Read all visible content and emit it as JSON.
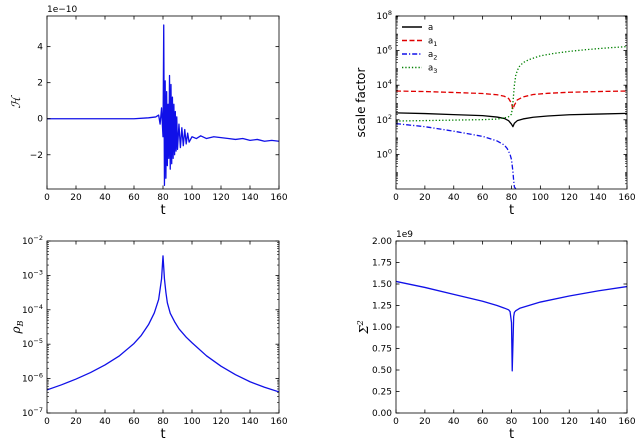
{
  "colors": {
    "blue": "#1010e8",
    "black": "#000000",
    "red": "#e00000",
    "green": "#008000"
  },
  "chart_data": [
    {
      "id": "hamiltonian",
      "type": "line",
      "xlabel": "t",
      "ylabel": "ℋ",
      "offset_text": "1e−10",
      "xlim": [
        0,
        160
      ],
      "ylim": [
        -3.9,
        5.7
      ],
      "xticks": [
        "0",
        "20",
        "40",
        "60",
        "80",
        "100",
        "120",
        "140",
        "160"
      ],
      "yticks": [
        "−2",
        "0",
        "2",
        "4"
      ],
      "series": [
        {
          "color": "#1010e8",
          "x": [
            0,
            20,
            40,
            60,
            70,
            75,
            77,
            78,
            79,
            80,
            80.5,
            81,
            81.5,
            82,
            82.5,
            83,
            83.5,
            84,
            84.5,
            85,
            85.5,
            86,
            86.5,
            87,
            87.5,
            88,
            88.5,
            89,
            89.5,
            90,
            91,
            92,
            93,
            94,
            95,
            96,
            97,
            98,
            100,
            103,
            106,
            110,
            115,
            120,
            125,
            130,
            135,
            140,
            145,
            150,
            155,
            160
          ],
          "y": [
            0,
            0,
            0,
            0,
            0.05,
            0.1,
            0.2,
            -0.3,
            0.6,
            -1.0,
            5.2,
            -3.7,
            2.1,
            -3.3,
            1.5,
            -2.6,
            0.8,
            -2.2,
            2.4,
            -2.8,
            1.9,
            -2.5,
            1.2,
            -2.2,
            0.8,
            -2.0,
            0.4,
            -1.8,
            0.1,
            -1.7,
            -0.3,
            -1.6,
            -0.5,
            -1.5,
            -0.6,
            -1.4,
            -0.8,
            -1.3,
            -1.0,
            -1.1,
            -0.95,
            -1.1,
            -1.0,
            -1.05,
            -1.1,
            -1.15,
            -1.1,
            -1.2,
            -1.15,
            -1.25,
            -1.2,
            -1.25
          ]
        }
      ]
    },
    {
      "id": "scale-factor",
      "type": "line",
      "xlabel": "t",
      "ylabel": "scale factor",
      "yscale": "log",
      "xlim": [
        0,
        160
      ],
      "ylim": [
        0.01,
        100000000
      ],
      "xticks": [
        "0",
        "20",
        "40",
        "60",
        "80",
        "100",
        "120",
        "140",
        "160"
      ],
      "yticks": [
        {
          "base": "10",
          "exp": "0"
        },
        {
          "base": "10",
          "exp": "2"
        },
        {
          "base": "10",
          "exp": "4"
        },
        {
          "base": "10",
          "exp": "6"
        },
        {
          "base": "10",
          "exp": "8"
        }
      ],
      "legend_position": "top-left",
      "series": [
        {
          "name": "a",
          "color": "#000000",
          "dash": "solid",
          "x": [
            0,
            20,
            40,
            60,
            70,
            75,
            78,
            80,
            81,
            82,
            84,
            88,
            95,
            105,
            120,
            140,
            160
          ],
          "y": [
            251,
            229,
            200,
            174,
            144,
            120,
            89,
            56,
            40,
            63,
            89,
            112,
            141,
            166,
            195,
            215,
            235
          ]
        },
        {
          "name": "a",
          "sub": "1",
          "color": "#e00000",
          "dash": "dashed",
          "x": [
            0,
            20,
            40,
            60,
            70,
            75,
            78,
            80,
            81,
            82,
            84,
            88,
            95,
            105,
            120,
            140,
            160
          ],
          "y": [
            4600,
            4300,
            3800,
            3300,
            2800,
            2300,
            1700,
            900,
            400,
            700,
            1400,
            2100,
            2900,
            3400,
            3900,
            4300,
            4600
          ]
        },
        {
          "name": "a",
          "sub": "2",
          "color": "#1010e8",
          "dash": "dashdot",
          "x": [
            0,
            20,
            40,
            60,
            70,
            75,
            77,
            79,
            80,
            81,
            81.5,
            82,
            83,
            85,
            90,
            100,
            120,
            140,
            160
          ],
          "y": [
            60,
            40,
            22,
            11,
            6,
            3.5,
            2.2,
            1.0,
            0.5,
            0.1,
            0.03,
            0.013,
            0.01,
            0.009,
            0.0085,
            0.0082,
            0.0078,
            0.0075,
            0.0072
          ]
        },
        {
          "name": "a",
          "sub": "3",
          "color": "#008000",
          "dash": "dotted",
          "x": [
            0,
            20,
            40,
            60,
            70,
            75,
            78,
            80,
            81,
            82,
            83,
            85,
            88,
            92,
            100,
            110,
            120,
            130,
            140,
            150,
            160
          ],
          "y": [
            85,
            90,
            96,
            102,
            110,
            128,
            150,
            210,
            1000,
            10000,
            40000,
            110000,
            200000,
            300000,
            500000,
            700000,
            900000,
            1100000,
            1300000,
            1500000,
            1700000
          ]
        }
      ]
    },
    {
      "id": "rho-b",
      "type": "line",
      "xlabel": "t",
      "ylabel": "ρ",
      "ylabel_sub": "B",
      "yscale": "log",
      "xlim": [
        0,
        160
      ],
      "ylim": [
        1e-07,
        0.01
      ],
      "xticks": [
        "0",
        "20",
        "40",
        "60",
        "80",
        "100",
        "120",
        "140",
        "160"
      ],
      "yticks": [
        {
          "base": "10",
          "exp": "−7"
        },
        {
          "base": "10",
          "exp": "−6"
        },
        {
          "base": "10",
          "exp": "−5"
        },
        {
          "base": "10",
          "exp": "−4"
        },
        {
          "base": "10",
          "exp": "−3"
        },
        {
          "base": "10",
          "exp": "−2"
        }
      ],
      "series": [
        {
          "color": "#1010e8",
          "x": [
            0,
            10,
            20,
            30,
            40,
            50,
            60,
            65,
            70,
            74,
            77,
            79,
            80,
            81,
            82,
            83,
            85,
            88,
            91,
            96,
            100,
            110,
            120,
            130,
            140,
            150,
            160
          ],
          "y": [
            4.7e-07,
            6.6e-07,
            9.7e-07,
            1.5e-06,
            2.5e-06,
            4.6e-06,
            1.05e-05,
            1.8e-05,
            3.7e-05,
            8.1e-05,
            0.0002,
            0.00079,
            0.0037,
            0.00079,
            0.00032,
            0.00016,
            7.9e-05,
            4.5e-05,
            2.8e-05,
            1.6e-05,
            1.1e-05,
            4.6e-06,
            2.3e-06,
            1.3e-06,
            8.1e-07,
            5.6e-07,
            4.1e-07
          ]
        }
      ]
    },
    {
      "id": "sigma-squared",
      "type": "line",
      "xlabel": "t",
      "ylabel": "Σ",
      "ylabel_sup": "2",
      "offset_text": "1e9",
      "xlim": [
        0,
        160
      ],
      "ylim": [
        0,
        2.0
      ],
      "xticks": [
        "0",
        "20",
        "40",
        "60",
        "80",
        "100",
        "120",
        "140",
        "160"
      ],
      "yticks": [
        "0.00",
        "0.25",
        "0.50",
        "0.75",
        "1.00",
        "1.25",
        "1.50",
        "1.75",
        "2.00"
      ],
      "series": [
        {
          "color": "#1010e8",
          "x": [
            0,
            20,
            40,
            60,
            70,
            75,
            78,
            79,
            80,
            80.5,
            81,
            81.5,
            82,
            83,
            84,
            86,
            90,
            100,
            120,
            140,
            160
          ],
          "y": [
            1.53,
            1.46,
            1.38,
            1.3,
            1.25,
            1.22,
            1.2,
            1.18,
            1.05,
            0.49,
            0.8,
            1.12,
            1.17,
            1.19,
            1.2,
            1.22,
            1.24,
            1.29,
            1.36,
            1.42,
            1.47
          ]
        }
      ]
    }
  ]
}
